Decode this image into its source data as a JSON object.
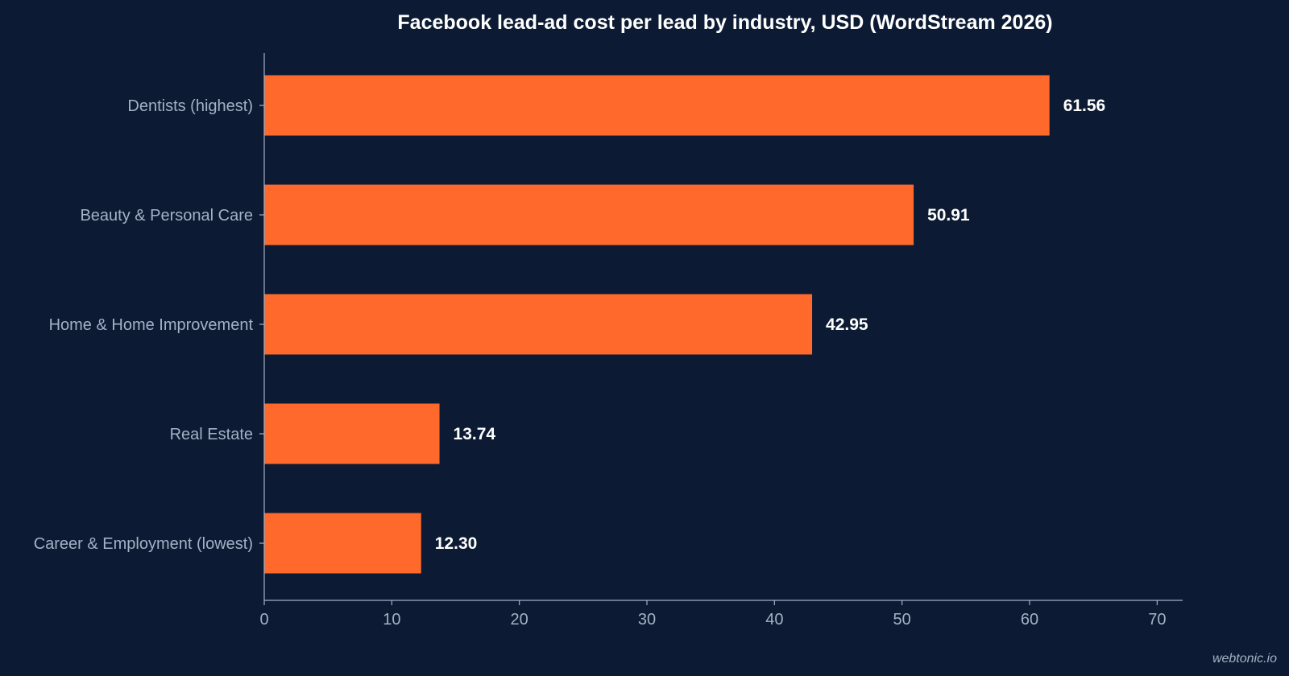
{
  "watermark": "webtonic.io",
  "colors": {
    "background": "#0c1b33",
    "bar": "#ff6a2c",
    "axis": "#a3b1c6",
    "label": "#a3b1c6",
    "value_label": "#ffffff",
    "title": "#ffffff"
  },
  "chart_data": {
    "type": "bar",
    "orientation": "horizontal",
    "title": "Facebook lead-ad cost per lead by industry, USD (WordStream 2026)",
    "xlabel": "",
    "ylabel": "",
    "categories": [
      "Dentists (highest)",
      "Beauty & Personal Care",
      "Home & Home Improvement",
      "Real Estate",
      "Career & Employment (lowest)"
    ],
    "values": [
      61.56,
      50.91,
      42.95,
      13.74,
      12.3
    ],
    "value_labels": [
      "61.56",
      "50.91",
      "42.95",
      "13.74",
      "12.30"
    ],
    "xlim": [
      0,
      72
    ],
    "xticks": [
      0,
      10,
      20,
      30,
      40,
      50,
      60,
      70
    ],
    "grid": false,
    "legend": "none"
  }
}
